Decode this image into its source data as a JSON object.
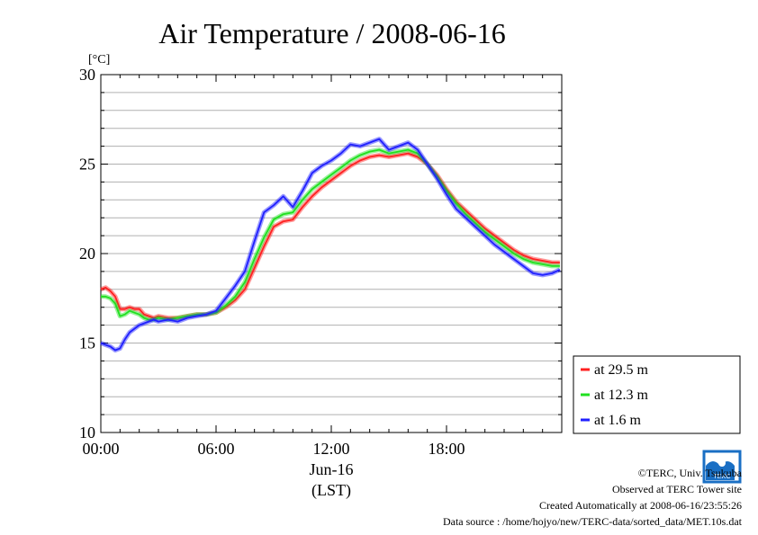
{
  "chart_data": {
    "type": "line",
    "title": "Air Temperature / 2008-06-16",
    "ylabel": "[°C]",
    "ylim": [
      10,
      30
    ],
    "yticks": [
      "10",
      "15",
      "20",
      "25",
      "30"
    ],
    "xlim": [
      0,
      24
    ],
    "xticks": [
      "00:00",
      "06:00",
      "12:00",
      "18:00"
    ],
    "xtick_values": [
      0,
      6,
      12,
      18
    ],
    "date_label": "Jun-16",
    "xlabel": "(LST)",
    "grid": "horizontal every 1 °C",
    "legend_placement": "right",
    "series": [
      {
        "name": "at 29.5 m",
        "color": "#ff2020",
        "x": [
          0,
          0.25,
          0.5,
          0.75,
          1,
          1.25,
          1.5,
          1.75,
          2,
          2.25,
          2.5,
          2.75,
          3,
          3.5,
          4,
          4.5,
          5,
          5.5,
          6,
          6.5,
          7,
          7.5,
          8,
          8.5,
          9,
          9.5,
          10,
          10.5,
          11,
          11.5,
          12,
          12.5,
          13,
          13.5,
          14,
          14.5,
          15,
          15.5,
          16,
          16.5,
          17,
          17.5,
          18,
          18.5,
          19,
          19.5,
          20,
          20.5,
          21,
          21.5,
          22,
          22.5,
          23,
          23.5,
          23.9
        ],
        "y": [
          18.0,
          18.1,
          17.9,
          17.6,
          16.9,
          16.9,
          17.0,
          16.9,
          16.9,
          16.6,
          16.5,
          16.4,
          16.5,
          16.4,
          16.4,
          16.5,
          16.6,
          16.6,
          16.7,
          17.0,
          17.4,
          18.0,
          19.2,
          20.4,
          21.5,
          21.8,
          21.9,
          22.6,
          23.2,
          23.7,
          24.1,
          24.5,
          24.9,
          25.2,
          25.4,
          25.5,
          25.4,
          25.5,
          25.6,
          25.4,
          25.0,
          24.4,
          23.6,
          22.9,
          22.4,
          21.9,
          21.4,
          21.0,
          20.6,
          20.2,
          19.9,
          19.7,
          19.6,
          19.5,
          19.5
        ]
      },
      {
        "name": "at 12.3 m",
        "color": "#20e020",
        "x": [
          0,
          0.25,
          0.5,
          0.75,
          1,
          1.25,
          1.5,
          1.75,
          2,
          2.25,
          2.5,
          2.75,
          3,
          3.5,
          4,
          4.5,
          5,
          5.5,
          6,
          6.5,
          7,
          7.5,
          8,
          8.5,
          9,
          9.5,
          10,
          10.5,
          11,
          11.5,
          12,
          12.5,
          13,
          13.5,
          14,
          14.5,
          15,
          15.5,
          16,
          16.5,
          17,
          17.5,
          18,
          18.5,
          19,
          19.5,
          20,
          20.5,
          21,
          21.5,
          22,
          22.5,
          23,
          23.5,
          23.9
        ],
        "y": [
          17.6,
          17.6,
          17.5,
          17.2,
          16.5,
          16.6,
          16.8,
          16.7,
          16.6,
          16.4,
          16.3,
          16.3,
          16.4,
          16.3,
          16.4,
          16.5,
          16.6,
          16.6,
          16.7,
          17.1,
          17.6,
          18.4,
          19.7,
          20.9,
          21.9,
          22.2,
          22.3,
          23.0,
          23.6,
          24.0,
          24.4,
          24.8,
          25.2,
          25.5,
          25.7,
          25.8,
          25.6,
          25.7,
          25.8,
          25.6,
          25.0,
          24.3,
          23.5,
          22.8,
          22.2,
          21.7,
          21.2,
          20.8,
          20.4,
          20.0,
          19.7,
          19.5,
          19.4,
          19.3,
          19.3
        ]
      },
      {
        "name": "at 1.6 m",
        "color": "#2020ff",
        "x": [
          0,
          0.25,
          0.5,
          0.75,
          1,
          1.25,
          1.5,
          1.75,
          2,
          2.25,
          2.5,
          2.75,
          3,
          3.5,
          4,
          4.5,
          5,
          5.5,
          6,
          6.5,
          7,
          7.5,
          8,
          8.5,
          9,
          9.5,
          10,
          10.5,
          11,
          11.5,
          12,
          12.5,
          13,
          13.5,
          14,
          14.5,
          15,
          15.5,
          16,
          16.5,
          17,
          17.5,
          18,
          18.5,
          19,
          19.5,
          20,
          20.5,
          21,
          21.5,
          22,
          22.5,
          23,
          23.5,
          23.9
        ],
        "y": [
          15.0,
          14.9,
          14.8,
          14.6,
          14.7,
          15.2,
          15.6,
          15.8,
          16.0,
          16.1,
          16.2,
          16.3,
          16.2,
          16.3,
          16.2,
          16.4,
          16.5,
          16.6,
          16.8,
          17.5,
          18.2,
          19.0,
          20.7,
          22.3,
          22.7,
          23.2,
          22.6,
          23.5,
          24.5,
          24.9,
          25.2,
          25.6,
          26.1,
          26.0,
          26.2,
          26.4,
          25.8,
          26.0,
          26.2,
          25.8,
          25.0,
          24.2,
          23.3,
          22.5,
          22.0,
          21.5,
          21.0,
          20.5,
          20.1,
          19.7,
          19.3,
          18.9,
          18.8,
          18.9,
          19.1
        ]
      }
    ]
  },
  "footer": {
    "copyright": "©TERC, Univ. Tsukuba",
    "site": "Observed at TERC Tower site",
    "created": "Created Automatically at 2008-06-16/23:55:26",
    "source": "Data source : /home/hojyo/new/TERC-data/sorted_data/MET.10s.dat"
  },
  "logo": {
    "text": "TERC",
    "color": "#1a6fc4"
  }
}
